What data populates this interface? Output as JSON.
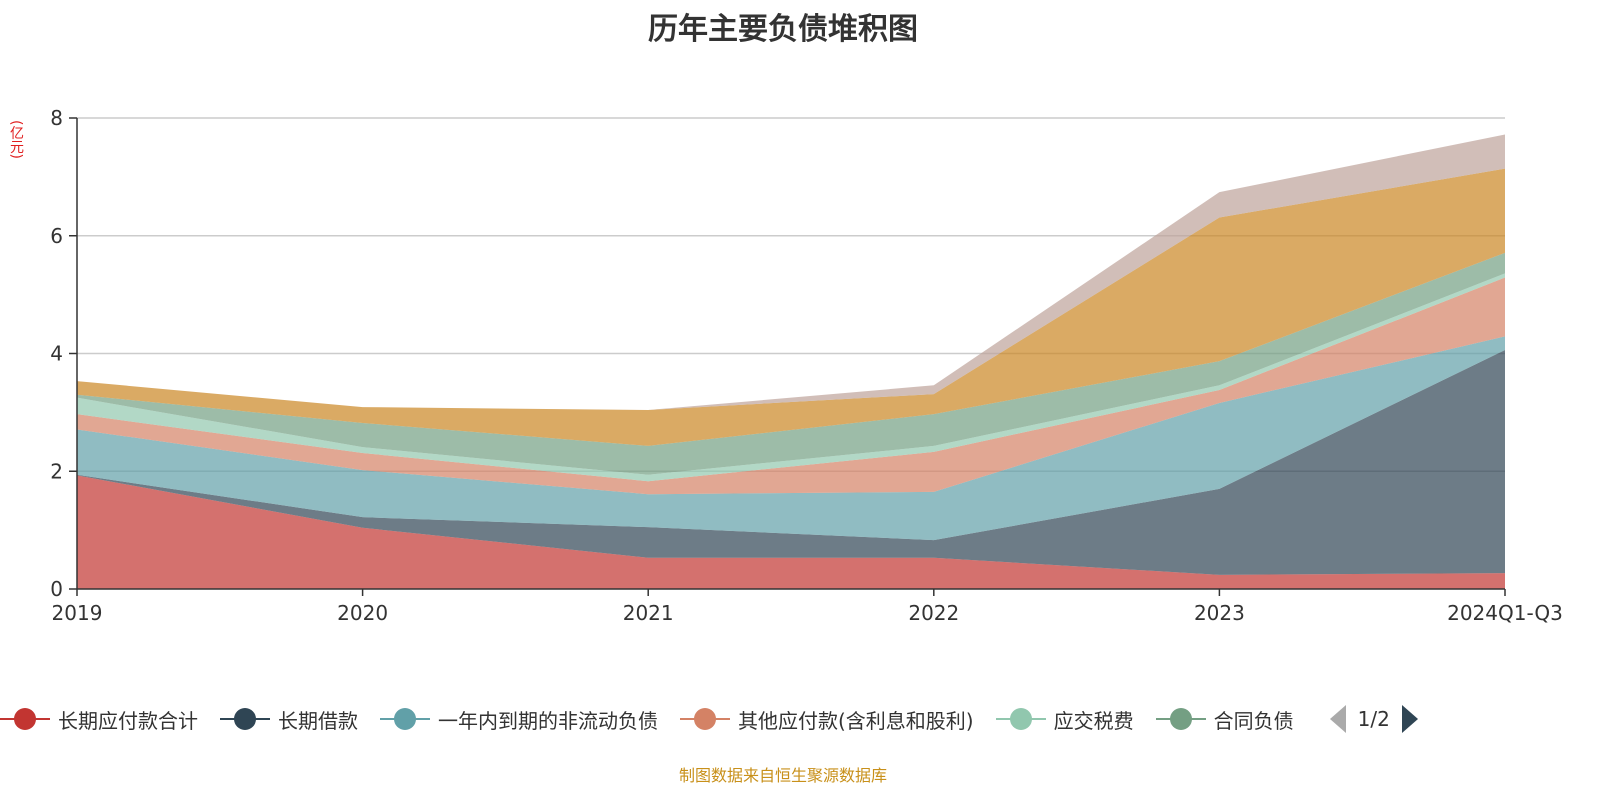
{
  "chart_data": {
    "type": "area",
    "stacked": true,
    "title": "历年主要负债堆积图",
    "ylabel": "(亿元)",
    "xlabel": "",
    "ylim": [
      0,
      8
    ],
    "yticks": [
      "0",
      "2",
      "4",
      "6",
      "8"
    ],
    "categories": [
      "2019",
      "2020",
      "2021",
      "2022",
      "2023",
      "2024Q1-Q3"
    ],
    "grid": true,
    "legend_position": "bottom",
    "series": [
      {
        "name": "长期应付款合计",
        "color": "#c23531",
        "values": [
          1.93,
          1.04,
          0.53,
          0.53,
          0.24,
          0.27
        ]
      },
      {
        "name": "长期借款",
        "color": "#2f4554",
        "values": [
          0.01,
          0.18,
          0.52,
          0.3,
          1.46,
          3.79
        ]
      },
      {
        "name": "一年内到期的非流动负债",
        "color": "#61a0a8",
        "values": [
          0.77,
          0.8,
          0.56,
          0.82,
          1.46,
          0.23
        ]
      },
      {
        "name": "其他应付款(含利息和股利)",
        "color": "#d48265",
        "values": [
          0.26,
          0.29,
          0.22,
          0.68,
          0.22,
          1.0
        ]
      },
      {
        "name": "应交税费",
        "color": "#91c7ae",
        "values": [
          0.28,
          0.1,
          0.11,
          0.1,
          0.08,
          0.07
        ]
      },
      {
        "name": "合同负债",
        "color": "#749f83",
        "values": [
          0.05,
          0.41,
          0.49,
          0.54,
          0.41,
          0.35
        ]
      },
      {
        "name": "",
        "color": "#ca8622",
        "values": [
          0.23,
          0.27,
          0.61,
          0.34,
          2.44,
          1.43
        ]
      },
      {
        "name": "",
        "color": "#bda29a",
        "values": [
          0.0,
          0.0,
          0.0,
          0.15,
          0.43,
          0.58
        ]
      }
    ]
  },
  "legend": {
    "page": "1/2",
    "visible_count": 6
  },
  "source": "制图数据来自恒生聚源数据库"
}
